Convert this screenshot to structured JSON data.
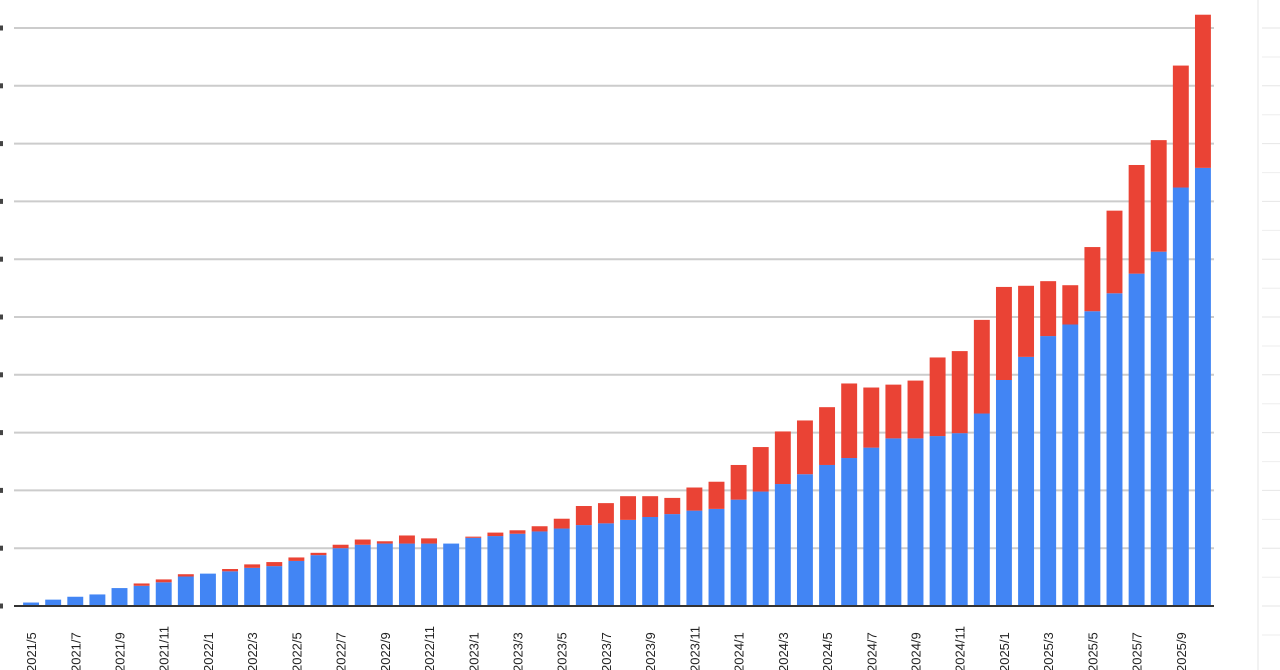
{
  "colors": {
    "series_primary": "#4285f4",
    "series_secondary": "#ea4335",
    "gridline": "#cccccc",
    "axis": "#333333",
    "background": "#ffffff"
  },
  "chart_data": {
    "type": "bar",
    "stacked": true,
    "grid": true,
    "legend": "none",
    "ylim": [
      0,
      100
    ],
    "categories": [
      "2021/5",
      "2021/6",
      "2021/7",
      "2021/8",
      "2021/9",
      "2021/10",
      "2021/11",
      "2021/12",
      "2022/1",
      "2022/2",
      "2022/3",
      "2022/4",
      "2022/5",
      "2022/6",
      "2022/7",
      "2022/8",
      "2022/9",
      "2022/10",
      "2022/11",
      "2022/12",
      "2023/1",
      "2023/2",
      "2023/3",
      "2023/4",
      "2023/5",
      "2023/6",
      "2023/7",
      "2023/8",
      "2023/9",
      "2023/10",
      "2023/11",
      "2023/12",
      "2024/1",
      "2024/2",
      "2024/3",
      "2024/4",
      "2024/5",
      "2024/6",
      "2024/7",
      "2024/8",
      "2024/9",
      "2024/10",
      "2024/11",
      "2024/12",
      "2025/1",
      "2025/2",
      "2025/3",
      "2025/4",
      "2025/5",
      "2025/6",
      "2025/7",
      "2025/8",
      "2025/9",
      "2025/10"
    ],
    "tick_labels": [
      "2021/5",
      "2021/7",
      "2021/9",
      "2021/11",
      "2022/1",
      "2022/3",
      "2022/5",
      "2022/7",
      "2022/9",
      "2022/11",
      "2023/1",
      "2023/3",
      "2023/5",
      "2023/7",
      "2023/9",
      "2023/11",
      "2024/1",
      "2024/3",
      "2024/5",
      "2024/7",
      "2024/9",
      "2024/11",
      "2025/1",
      "2025/3",
      "2025/5",
      "2025/7",
      "2025/9"
    ],
    "series": [
      {
        "color": "#4285f4",
        "values": [
          0.6,
          1.1,
          1.6,
          2.0,
          3.1,
          3.5,
          4.1,
          5.1,
          5.6,
          6.0,
          6.6,
          6.9,
          7.8,
          8.8,
          10.0,
          10.6,
          10.8,
          10.8,
          10.8,
          10.8,
          11.8,
          12.1,
          12.5,
          12.9,
          13.4,
          14.0,
          14.3,
          14.9,
          15.4,
          15.9,
          16.5,
          16.8,
          18.4,
          19.8,
          21.1,
          22.8,
          24.4,
          25.6,
          27.4,
          29.0,
          29.0,
          29.4,
          29.9,
          33.3,
          39.1,
          43.1,
          46.7,
          48.7,
          51.0,
          54.1,
          57.5,
          61.3,
          72.4,
          75.8
        ]
      },
      {
        "color": "#ea4335",
        "values": [
          0,
          0,
          0,
          0,
          0,
          0.4,
          0.5,
          0.4,
          0,
          0.4,
          0.6,
          0.7,
          0.6,
          0.4,
          0.6,
          0.9,
          0.4,
          1.4,
          0.9,
          0,
          0.2,
          0.6,
          0.6,
          0.9,
          1.7,
          3.3,
          3.5,
          4.1,
          3.6,
          2.8,
          4.0,
          4.7,
          6.0,
          7.7,
          9.1,
          9.3,
          10.0,
          12.9,
          10.4,
          9.3,
          10.0,
          13.6,
          14.2,
          16.2,
          16.1,
          12.3,
          9.5,
          6.8,
          11.1,
          14.3,
          18.8,
          19.3,
          21.1,
          26.5
        ]
      }
    ]
  }
}
